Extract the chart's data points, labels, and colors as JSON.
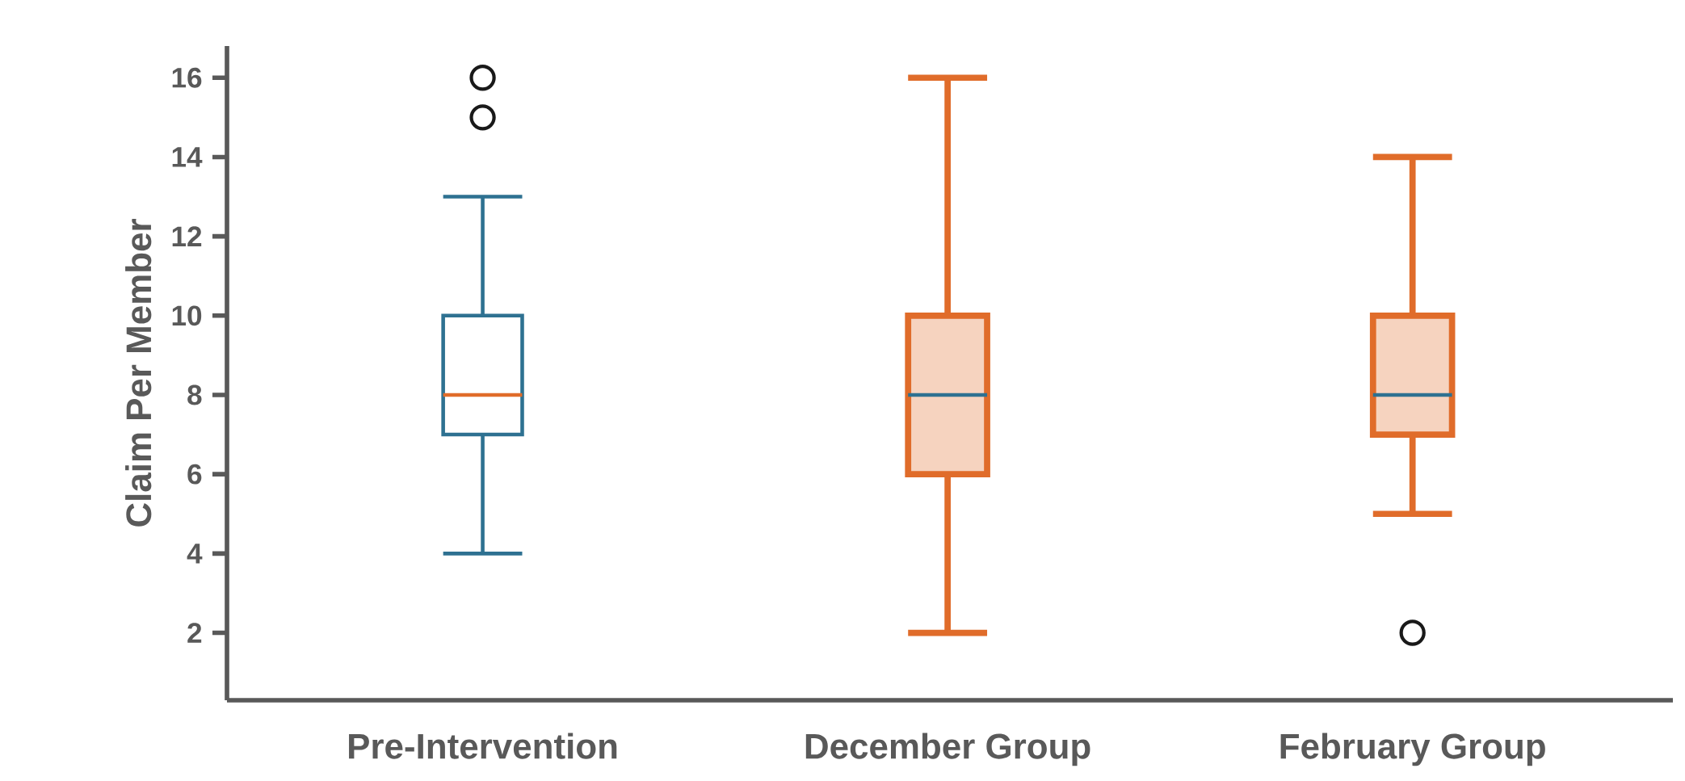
{
  "chart_data": {
    "type": "box",
    "ylabel": "Claim Per Member",
    "categories": [
      "Pre-Intervention",
      "December Group",
      "February Group"
    ],
    "colors": [
      "#2e7191",
      "#e06c2a",
      "#e06c2a"
    ],
    "boxes": [
      {
        "low": 4,
        "q1": 7,
        "median": 8,
        "q3": 10,
        "high": 13,
        "outliers": [
          15,
          16
        ]
      },
      {
        "low": 2,
        "q1": 6,
        "median": 8,
        "q3": 10,
        "high": 16
      },
      {
        "low": 5,
        "q1": 7,
        "median": 8,
        "q3": 10,
        "high": 14,
        "outliers": [
          2
        ]
      }
    ],
    "ylim": [
      0.3,
      16.8
    ],
    "yticks": [
      2,
      4,
      6,
      8,
      10,
      12,
      14,
      16
    ],
    "grid": false
  }
}
